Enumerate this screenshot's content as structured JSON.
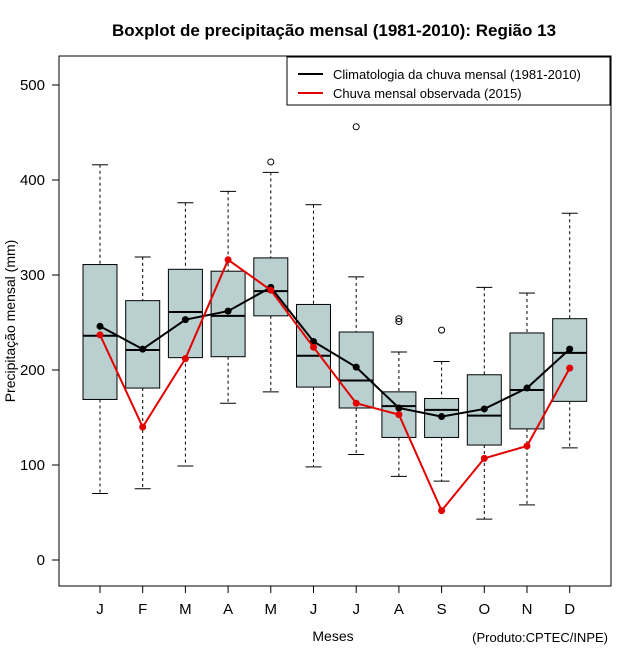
{
  "chart_data": {
    "type": "boxplot",
    "title": "Boxplot de precipitação mensal (1981-2010): Região 13",
    "xlabel": "Meses",
    "ylabel": "Precipitação mensal (mm)",
    "ylim": [
      -30,
      525
    ],
    "yticks": [
      0,
      100,
      200,
      300,
      400,
      500
    ],
    "categories": [
      "J",
      "F",
      "M",
      "A",
      "M",
      "J",
      "J",
      "A",
      "S",
      "O",
      "N",
      "D"
    ],
    "boxes": [
      {
        "min": 70,
        "q1": 169,
        "median": 236,
        "q3": 311,
        "max": 416,
        "outliers": []
      },
      {
        "min": 75,
        "q1": 181,
        "median": 221,
        "q3": 273,
        "max": 319,
        "outliers": []
      },
      {
        "min": 99,
        "q1": 213,
        "median": 261,
        "q3": 306,
        "max": 376,
        "outliers": []
      },
      {
        "min": 165,
        "q1": 214,
        "median": 257,
        "q3": 304,
        "max": 388,
        "outliers": []
      },
      {
        "min": 177,
        "q1": 257,
        "median": 283,
        "q3": 318,
        "max": 408,
        "outliers": [
          419
        ]
      },
      {
        "min": 98,
        "q1": 182,
        "median": 215,
        "q3": 269,
        "max": 374,
        "outliers": []
      },
      {
        "min": 111,
        "q1": 160,
        "median": 189,
        "q3": 240,
        "max": 298,
        "outliers": [
          456
        ]
      },
      {
        "min": 88,
        "q1": 129,
        "median": 162,
        "q3": 177,
        "max": 219,
        "outliers": [
          251,
          254
        ]
      },
      {
        "min": 83,
        "q1": 129,
        "median": 158,
        "q3": 170,
        "max": 209,
        "outliers": [
          242
        ]
      },
      {
        "min": 43,
        "q1": 121,
        "median": 152,
        "q3": 195,
        "max": 287,
        "outliers": []
      },
      {
        "min": 58,
        "q1": 138,
        "median": 179,
        "q3": 239,
        "max": 281,
        "outliers": []
      },
      {
        "min": 118,
        "q1": 167,
        "median": 218,
        "q3": 254,
        "max": 365,
        "outliers": []
      }
    ],
    "series": [
      {
        "name": "Climatologia da chuva mensal (1981-2010)",
        "color": "#000000",
        "values": [
          246,
          222,
          253,
          262,
          287,
          230,
          203,
          160,
          151,
          159,
          181,
          222
        ]
      },
      {
        "name": "Chuva mensal observada (2015)",
        "color": "#e30000",
        "values": [
          237,
          140,
          212,
          316,
          284,
          224,
          165,
          153,
          52,
          107,
          120,
          202
        ]
      }
    ],
    "legend_position": "top-right",
    "box_fill": "#b9cfd0",
    "grid": false
  },
  "credit": "(Produto:CPTEC/INPE)"
}
